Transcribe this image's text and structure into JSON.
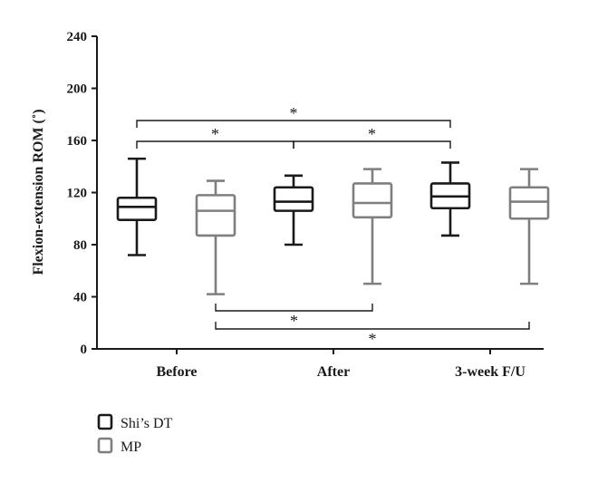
{
  "chart_data": {
    "type": "boxplot",
    "ylabel": "Flexion-extension ROM (˚)",
    "ylim": [
      0,
      240
    ],
    "yticks": [
      0,
      40,
      80,
      120,
      160,
      200,
      240
    ],
    "categories": [
      "Before",
      "After",
      "3-week F/U"
    ],
    "series": [
      {
        "name": "Shi’s DT",
        "color": "#1a1a1a",
        "boxes": [
          {
            "min": 72,
            "q1": 99,
            "median": 109,
            "q3": 116,
            "max": 146
          },
          {
            "min": 80,
            "q1": 106,
            "median": 113,
            "q3": 124,
            "max": 133
          },
          {
            "min": 87,
            "q1": 108,
            "median": 117,
            "q3": 127,
            "max": 143
          }
        ]
      },
      {
        "name": "MP",
        "color": "#7f7f7f",
        "boxes": [
          {
            "min": 42,
            "q1": 87,
            "median": 106,
            "q3": 118,
            "max": 129
          },
          {
            "min": 50,
            "q1": 101,
            "median": 112,
            "q3": 127,
            "max": 138
          },
          {
            "min": 50,
            "q1": 100,
            "median": 113,
            "q3": 124,
            "max": 138
          }
        ]
      }
    ],
    "significance": [
      {
        "from_group": 0,
        "from_series": 0,
        "to_group": 2,
        "to_series": 0,
        "position": "above",
        "level": 2,
        "label": "*"
      },
      {
        "from_group": 0,
        "from_series": 0,
        "to_group": 1,
        "to_series": 0,
        "position": "above",
        "level": 1,
        "label": "*"
      },
      {
        "from_group": 1,
        "from_series": 0,
        "to_group": 2,
        "to_series": 0,
        "position": "above",
        "level": 1,
        "label": "*"
      },
      {
        "from_group": 0,
        "from_series": 1,
        "to_group": 1,
        "to_series": 1,
        "position": "below",
        "level": 1,
        "label": "*"
      },
      {
        "from_group": 0,
        "from_series": 1,
        "to_group": 2,
        "to_series": 1,
        "position": "below",
        "level": 2,
        "label": "*"
      }
    ],
    "legend": [
      {
        "label": "Shi’s DT",
        "color": "#1a1a1a"
      },
      {
        "label": "MP",
        "color": "#7f7f7f"
      }
    ]
  }
}
